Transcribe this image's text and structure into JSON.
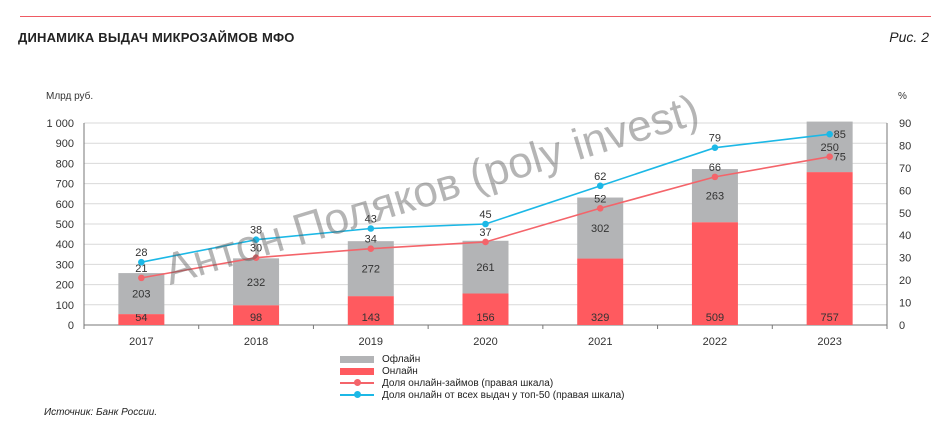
{
  "header": {
    "title": "ДИНАМИКА ВЫДАЧ МИКРОЗАЙМОВ МФО",
    "figure_label": "Рис. 2"
  },
  "source": "Источник: Банк России.",
  "watermark": "Антон Поляков (poly invest)",
  "chart_data": {
    "type": "bar",
    "categories": [
      "2017",
      "2018",
      "2019",
      "2020",
      "2021",
      "2022",
      "2023"
    ],
    "ylabel": "Млрд руб.",
    "ylabel_right": "%",
    "ylim": [
      0,
      1000
    ],
    "ylim_right": [
      0,
      90
    ],
    "yticks": [
      0,
      100,
      200,
      300,
      400,
      500,
      600,
      700,
      800,
      900,
      1000
    ],
    "yticks_labels": [
      "0",
      "100",
      "200",
      "300",
      "400",
      "500",
      "600",
      "700",
      "800",
      "900",
      "1 000"
    ],
    "yticks_right": [
      0,
      10,
      20,
      30,
      40,
      50,
      60,
      70,
      80,
      90
    ],
    "grid": true,
    "legend_position": "bottom",
    "series": [
      {
        "name": "Онлайн",
        "kind": "bar",
        "stack": "a",
        "axis": "left",
        "color": "#ff5a5f",
        "values": [
          54,
          98,
          143,
          156,
          329,
          509,
          757
        ]
      },
      {
        "name": "Офлайн",
        "kind": "bar",
        "stack": "a",
        "axis": "left",
        "color": "#b3b4b6",
        "values": [
          203,
          232,
          272,
          261,
          302,
          263,
          250
        ]
      },
      {
        "name": "Доля онлайн-займов (правая шкала)",
        "kind": "line",
        "axis": "right",
        "color": "#f4646a",
        "values": [
          21,
          30,
          34,
          37,
          52,
          66,
          75
        ]
      },
      {
        "name": "Доля онлайн от всех выдач у топ-50 (правая шкала)",
        "kind": "line",
        "axis": "right",
        "color": "#1cb8e6",
        "values": [
          28,
          38,
          43,
          45,
          62,
          79,
          85
        ]
      }
    ],
    "legend_order": [
      1,
      0,
      2,
      3
    ]
  }
}
